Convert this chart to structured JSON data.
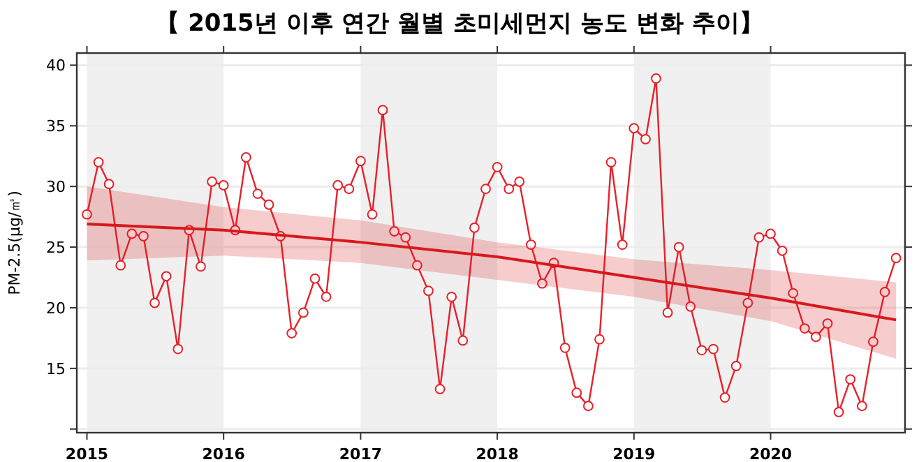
{
  "chart_data": {
    "type": "line",
    "title": "【 2015년 이후 연간 월별 초미세먼지 농도 변화 추이】",
    "ylabel": "PM-2.5(μg/㎥)",
    "x": [
      "2015-01",
      "2015-02",
      "2015-03",
      "2015-04",
      "2015-05",
      "2015-06",
      "2015-07",
      "2015-08",
      "2015-09",
      "2015-10",
      "2015-11",
      "2015-12",
      "2016-01",
      "2016-02",
      "2016-03",
      "2016-04",
      "2016-05",
      "2016-06",
      "2016-07",
      "2016-08",
      "2016-09",
      "2016-10",
      "2016-11",
      "2016-12",
      "2017-01",
      "2017-02",
      "2017-03",
      "2017-04",
      "2017-05",
      "2017-06",
      "2017-07",
      "2017-08",
      "2017-09",
      "2017-10",
      "2017-11",
      "2017-12",
      "2018-01",
      "2018-02",
      "2018-03",
      "2018-04",
      "2018-05",
      "2018-06",
      "2018-07",
      "2018-08",
      "2018-09",
      "2018-10",
      "2018-11",
      "2018-12",
      "2019-01",
      "2019-02",
      "2019-03",
      "2019-04",
      "2019-05",
      "2019-06",
      "2019-07",
      "2019-08",
      "2019-09",
      "2019-10",
      "2019-11",
      "2019-12",
      "2020-01",
      "2020-02",
      "2020-03",
      "2020-04",
      "2020-05",
      "2020-06",
      "2020-07",
      "2020-08",
      "2020-09",
      "2020-10",
      "2020-11",
      "2020-12"
    ],
    "series": [
      {
        "color": "#e8202a",
        "marker": "circle",
        "values": [
          27.7,
          32.0,
          30.2,
          23.5,
          26.1,
          25.9,
          20.4,
          22.6,
          16.6,
          26.4,
          23.4,
          30.4,
          30.1,
          26.4,
          32.4,
          29.4,
          28.5,
          25.9,
          17.9,
          19.6,
          22.4,
          20.9,
          30.1,
          29.8,
          32.1,
          27.7,
          36.3,
          26.3,
          25.8,
          23.5,
          21.4,
          13.3,
          20.9,
          17.3,
          26.6,
          29.8,
          31.6,
          29.8,
          30.4,
          25.2,
          22.0,
          23.7,
          16.7,
          13.0,
          11.9,
          17.4,
          32.0,
          25.2,
          34.8,
          33.9,
          38.9,
          19.6,
          25.0,
          20.1,
          16.5,
          16.6,
          12.6,
          15.2,
          20.4,
          25.8,
          26.1,
          24.7,
          21.2,
          18.3,
          17.6,
          18.7,
          11.4,
          14.1,
          11.9,
          17.2,
          21.3,
          24.1
        ]
      },
      {
        "type": "line",
        "color": "#d7191c",
        "marker": "none",
        "x": [
          "2015-01",
          "2016-01",
          "2017-01",
          "2018-01",
          "2019-01",
          "2020-01",
          "2020-12"
        ],
        "values": [
          26.9,
          26.4,
          25.4,
          24.2,
          22.5,
          20.8,
          19.0
        ],
        "lower": [
          23.9,
          24.3,
          23.7,
          22.3,
          20.9,
          18.9,
          15.8
        ],
        "upper": [
          30.0,
          28.3,
          27.2,
          25.4,
          24.0,
          23.1,
          22.1
        ]
      }
    ],
    "xlim": [
      "2014-12-05",
      "2020-12-25"
    ],
    "xticks": [
      "2015",
      "2016",
      "2017",
      "2018",
      "2019",
      "2020"
    ],
    "ylim": [
      9.7,
      41
    ],
    "yticks": [
      {
        "value": 10,
        "label": null
      },
      15,
      20,
      25,
      30,
      35,
      40
    ],
    "grid": "y",
    "line_style": "solid",
    "bands": [
      {
        "axis": "x",
        "from": "2015-01",
        "to": "2016-01",
        "color": "#f0f0f0"
      },
      {
        "axis": "x",
        "from": "2017-01",
        "to": "2018-01",
        "color": "#f0f0f0"
      },
      {
        "axis": "x",
        "from": "2019-01",
        "to": "2020-01",
        "color": "#f0f0f0"
      }
    ]
  }
}
